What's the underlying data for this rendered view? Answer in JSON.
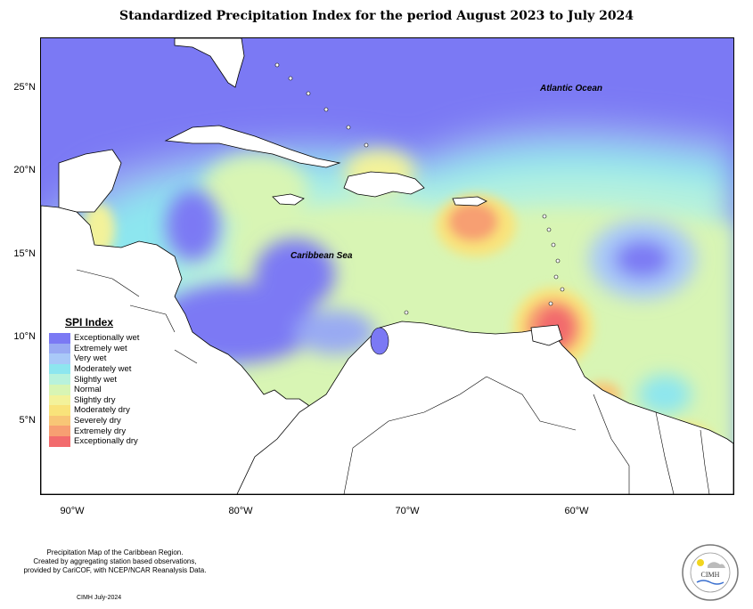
{
  "title": "Standardized Precipitation Index for the period August 2023 to July 2024",
  "map": {
    "y_ticks": [
      "25°N",
      "20°N",
      "15°N",
      "10°N",
      "5°N"
    ],
    "x_ticks": [
      "90°W",
      "80°W",
      "70°W",
      "60°W"
    ],
    "labels": {
      "atlantic": "Atlantic Ocean",
      "caribbean": "Caribbean Sea"
    }
  },
  "legend": {
    "title": "SPI Index",
    "items": [
      {
        "label": "Exceptionally wet",
        "color": "#7b79f4"
      },
      {
        "label": "Extremely wet",
        "color": "#99aaf3"
      },
      {
        "label": "Very wet",
        "color": "#a9c9f8"
      },
      {
        "label": "Moderately wet",
        "color": "#8de6ef"
      },
      {
        "label": "Slightly wet",
        "color": "#b8f2dc"
      },
      {
        "label": "Normal",
        "color": "#d8f5b4"
      },
      {
        "label": "Slightly dry",
        "color": "#f3f29a"
      },
      {
        "label": "Moderately dry",
        "color": "#f9e37a"
      },
      {
        "label": "Severely dry",
        "color": "#f8c676"
      },
      {
        "label": "Extremely dry",
        "color": "#f79f72"
      },
      {
        "label": "Exceptionally dry",
        "color": "#f26b6d"
      }
    ]
  },
  "footer": {
    "line1": "Precipitation Map of the Caribbean Region.",
    "line2": "Created by aggregating station based observations,",
    "line3": "provided by CariCOF, with NCEP/NCAR Reanalysis Data.",
    "credit": "CIMH July-2024"
  },
  "logo": {
    "text": "CIMH"
  }
}
